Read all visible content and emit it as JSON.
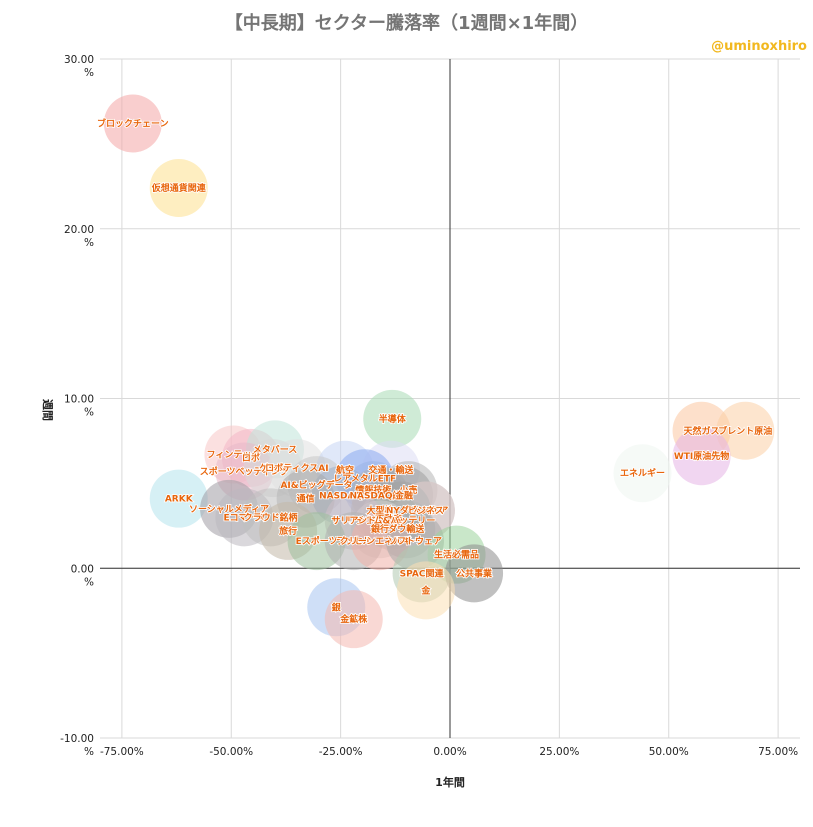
{
  "chart_data": {
    "type": "scatter",
    "title": "【中長期】セクター騰落率（1週間×1年間）",
    "credit": "@uminoxhiro",
    "xlabel": "1年間",
    "ylabel": "週間",
    "xlim": [
      -80,
      80
    ],
    "ylim": [
      -10,
      30
    ],
    "x_ticks": [
      -75,
      -50,
      -25,
      0,
      25,
      50,
      75
    ],
    "x_tick_labels": [
      "-75.00%",
      "-50.00%",
      "-25.00%",
      "0.00%",
      "25.00%",
      "50.00%",
      "75.00%"
    ],
    "y_ticks": [
      30,
      20,
      10,
      0,
      -10
    ],
    "y_tick_values": [
      "30.00",
      "20.00",
      "10.00",
      "0.00",
      "-10.00"
    ],
    "y_tick_unit": "%",
    "points": [
      {
        "label": "ブロックチェーン",
        "x": -72.5,
        "y": 26.2,
        "color": "#f4a6a6"
      },
      {
        "label": "仮想通貨関連",
        "x": -62,
        "y": 22.4,
        "color": "#fde08e"
      },
      {
        "label": "半導体",
        "x": -13.2,
        "y": 8.8,
        "color": "#a8dbb4"
      },
      {
        "label": "天然ガス",
        "x": 57.5,
        "y": 8.1,
        "color": "#fcc6a0"
      },
      {
        "label": "ブレント原油",
        "x": 67.5,
        "y": 8.1,
        "color": "#fcd0a6"
      },
      {
        "label": "WTI原油先物",
        "x": 57.5,
        "y": 6.6,
        "color": "#e6b4e6"
      },
      {
        "label": "エネルギー",
        "x": 44,
        "y": 5.6,
        "color": "#eef5f1"
      },
      {
        "label": "フィンテック",
        "x": -49.5,
        "y": 6.7,
        "color": "#f7c6c6"
      },
      {
        "label": "ロボ",
        "x": -45.5,
        "y": 6.5,
        "color": "#f4b6c6"
      },
      {
        "label": "メタバース",
        "x": -40,
        "y": 7.0,
        "color": "#bfe3d8"
      },
      {
        "label": "スポーツベッティング",
        "x": -47,
        "y": 5.7,
        "color": "#e8b8c8"
      },
      {
        "label": "ゲーム",
        "x": -40.5,
        "y": 5.9,
        "color": "#d8d8d8"
      },
      {
        "label": "ロボティクスAI",
        "x": -35,
        "y": 5.9,
        "color": "#e0e0e0"
      },
      {
        "label": "航空",
        "x": -24,
        "y": 5.8,
        "color": "#c6d6f4"
      },
      {
        "label": "交通・輸送",
        "x": -13.5,
        "y": 5.8,
        "color": "#dcdcf4"
      },
      {
        "label": "レアメタルETF",
        "x": -19.5,
        "y": 5.3,
        "color": "#8aaaf0"
      },
      {
        "label": "AI&ビッグデータ",
        "x": -30.5,
        "y": 4.9,
        "color": "#c8c8c8"
      },
      {
        "label": "情報技術",
        "x": -17.5,
        "y": 4.6,
        "color": "#9ab4e6"
      },
      {
        "label": "小売",
        "x": -9.5,
        "y": 4.6,
        "color": "#b4b4b4"
      },
      {
        "label": "NASDAQ",
        "x": -25,
        "y": 4.3,
        "color": "#a0b0c8"
      },
      {
        "label": "NASDAQ総合",
        "x": -16,
        "y": 4.3,
        "color": "#b0b0b0"
      },
      {
        "label": "金融",
        "x": -10.5,
        "y": 4.3,
        "color": "#a0a0a0"
      },
      {
        "label": "通信",
        "x": -33,
        "y": 4.1,
        "color": "#aaaaaa"
      },
      {
        "label": "ARKK",
        "x": -62,
        "y": 4.1,
        "color": "#b4e4ec"
      },
      {
        "label": "ソーシャルメディア",
        "x": -50.5,
        "y": 3.5,
        "color": "#a09ca4"
      },
      {
        "label": "Eコマース",
        "x": -47,
        "y": 3.0,
        "color": "#bcb8c0"
      },
      {
        "label": "クラウド銘柄",
        "x": -41,
        "y": 3.0,
        "color": "#c0c0c0"
      },
      {
        "label": "大型株",
        "x": -16,
        "y": 3.4,
        "color": "#a8a8a8"
      },
      {
        "label": "ヘルスケア",
        "x": -5.5,
        "y": 3.4,
        "color": "#f4c4c4"
      },
      {
        "label": "NYダウ",
        "x": -11,
        "y": 3.4,
        "color": "#a2a2a2"
      },
      {
        "label": "ビジネス",
        "x": -5.5,
        "y": 3.4,
        "color": "#c8c8c8"
      },
      {
        "label": "不動産",
        "x": -14,
        "y": 2.9,
        "color": "#c0c0c0"
      },
      {
        "label": "リチウム&バッテリー",
        "x": -13.5,
        "y": 2.8,
        "color": "#a0a8a0"
      },
      {
        "label": "ダウ輸送",
        "x": -10,
        "y": 2.3,
        "color": "#b8b8b8"
      },
      {
        "label": "銀行",
        "x": -16,
        "y": 2.3,
        "color": "#d4d4d4"
      },
      {
        "label": "サリアンド",
        "x": -22,
        "y": 2.8,
        "color": "#d0c0c8"
      },
      {
        "label": "旅行",
        "x": -37,
        "y": 2.2,
        "color": "#c2b8a8"
      },
      {
        "label": "Eスポーツ",
        "x": -30.5,
        "y": 1.6,
        "color": "#9cc09c"
      },
      {
        "label": "ラッセル",
        "x": -22,
        "y": 1.6,
        "color": "#b0b0b0"
      },
      {
        "label": "クリーンエネルギー",
        "x": -16,
        "y": 1.6,
        "color": "#f0b0a8"
      },
      {
        "label": "ソフトウェア",
        "x": -8,
        "y": 1.6,
        "color": "#a8a8a8"
      },
      {
        "label": "生活必需品",
        "x": 1.5,
        "y": 0.8,
        "color": "#9cd49c"
      },
      {
        "label": "SPAC関連",
        "x": -6.5,
        "y": -0.3,
        "color": "#b0c8b0"
      },
      {
        "label": "公共事業",
        "x": 5.5,
        "y": -0.3,
        "color": "#8c8c8c"
      },
      {
        "label": "金",
        "x": -5.5,
        "y": -1.3,
        "color": "#fce0b4"
      },
      {
        "label": "銀",
        "x": -26,
        "y": -2.3,
        "color": "#a8c4f0"
      },
      {
        "label": "金鉱株",
        "x": -22,
        "y": -3.0,
        "color": "#f4b8b0"
      }
    ]
  }
}
